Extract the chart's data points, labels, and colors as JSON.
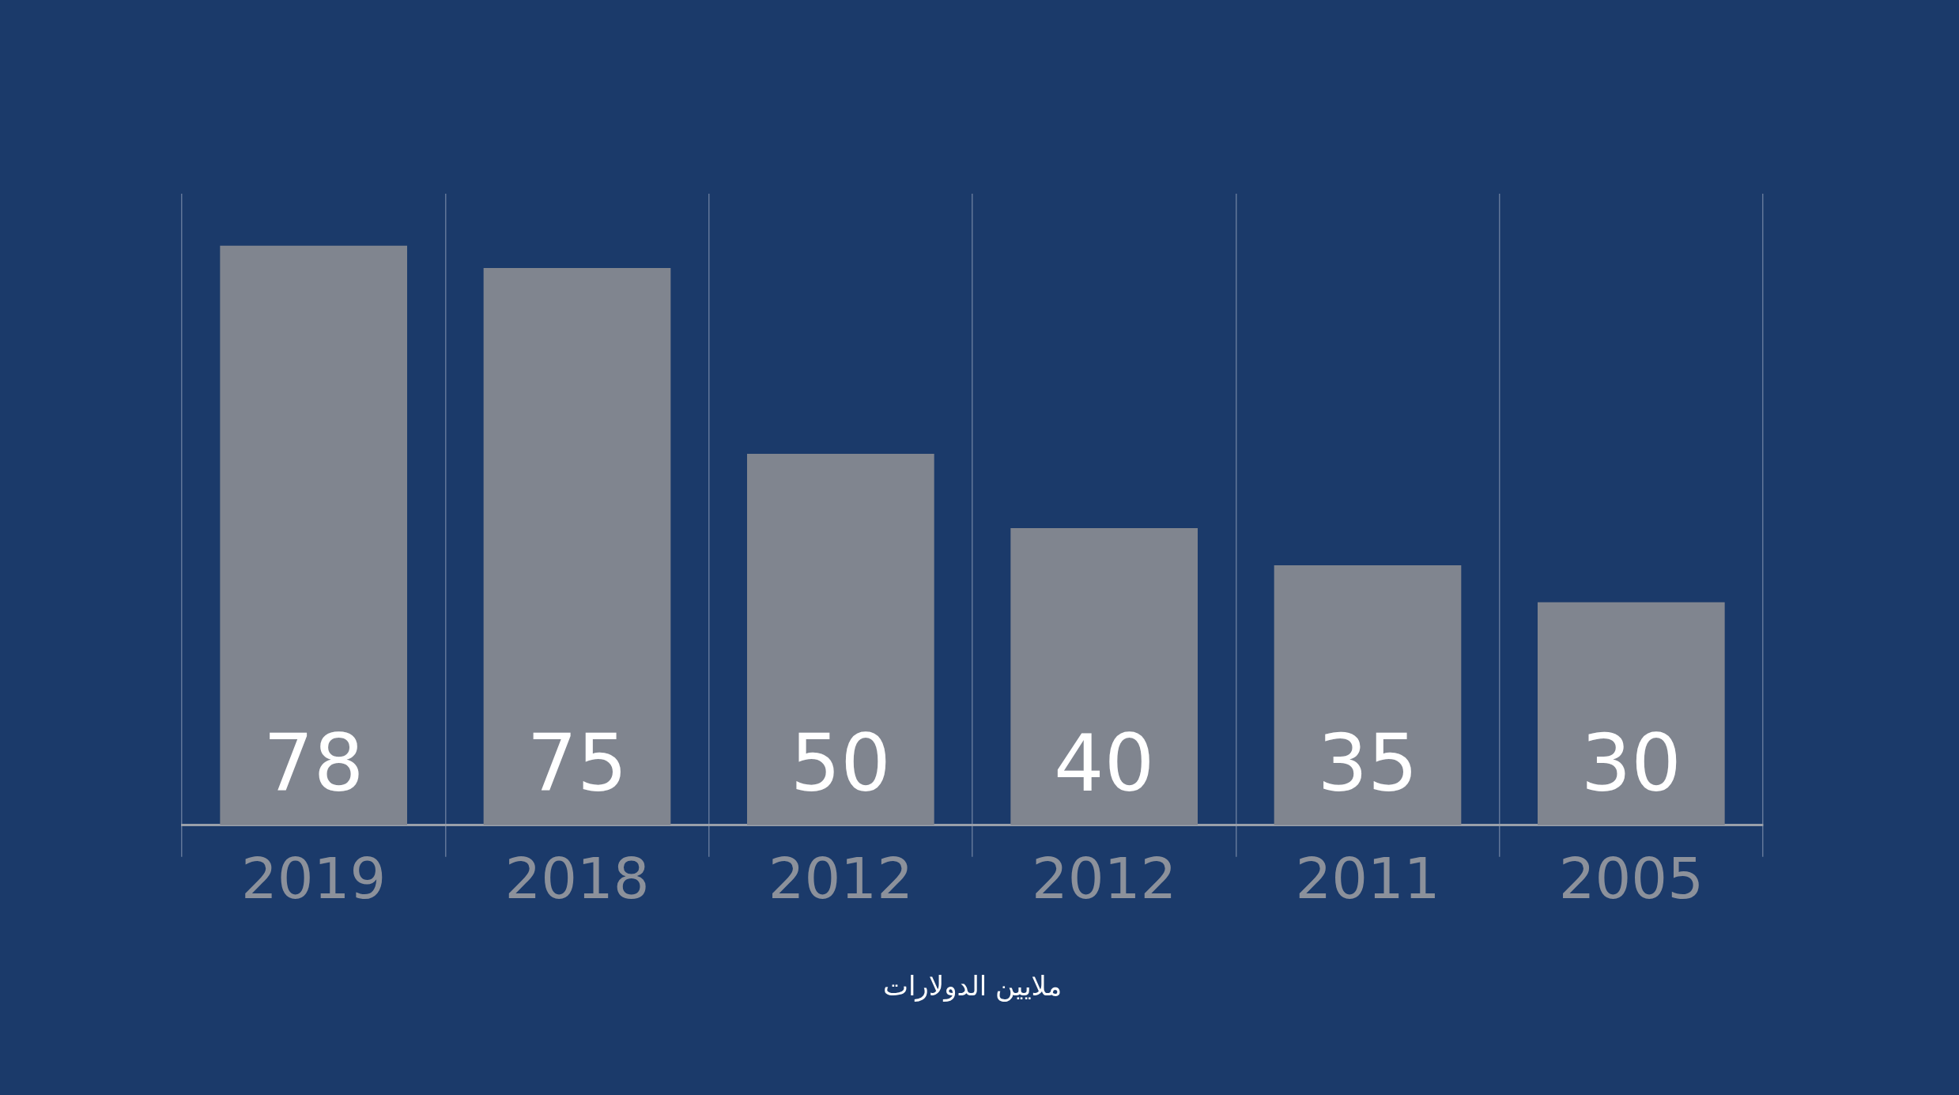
{
  "chart_data": {
    "type": "bar",
    "xlabel": "ملايين الدولارات",
    "categories": [
      "2019",
      "2018",
      "2012",
      "2012",
      "2011",
      "2005"
    ],
    "values": [
      78,
      75,
      50,
      40,
      35,
      30
    ],
    "color": "#80858f",
    "ylim": [
      0,
      85
    ],
    "data_labels": true,
    "grid": "x",
    "legend": false,
    "tick_labels": "x"
  }
}
